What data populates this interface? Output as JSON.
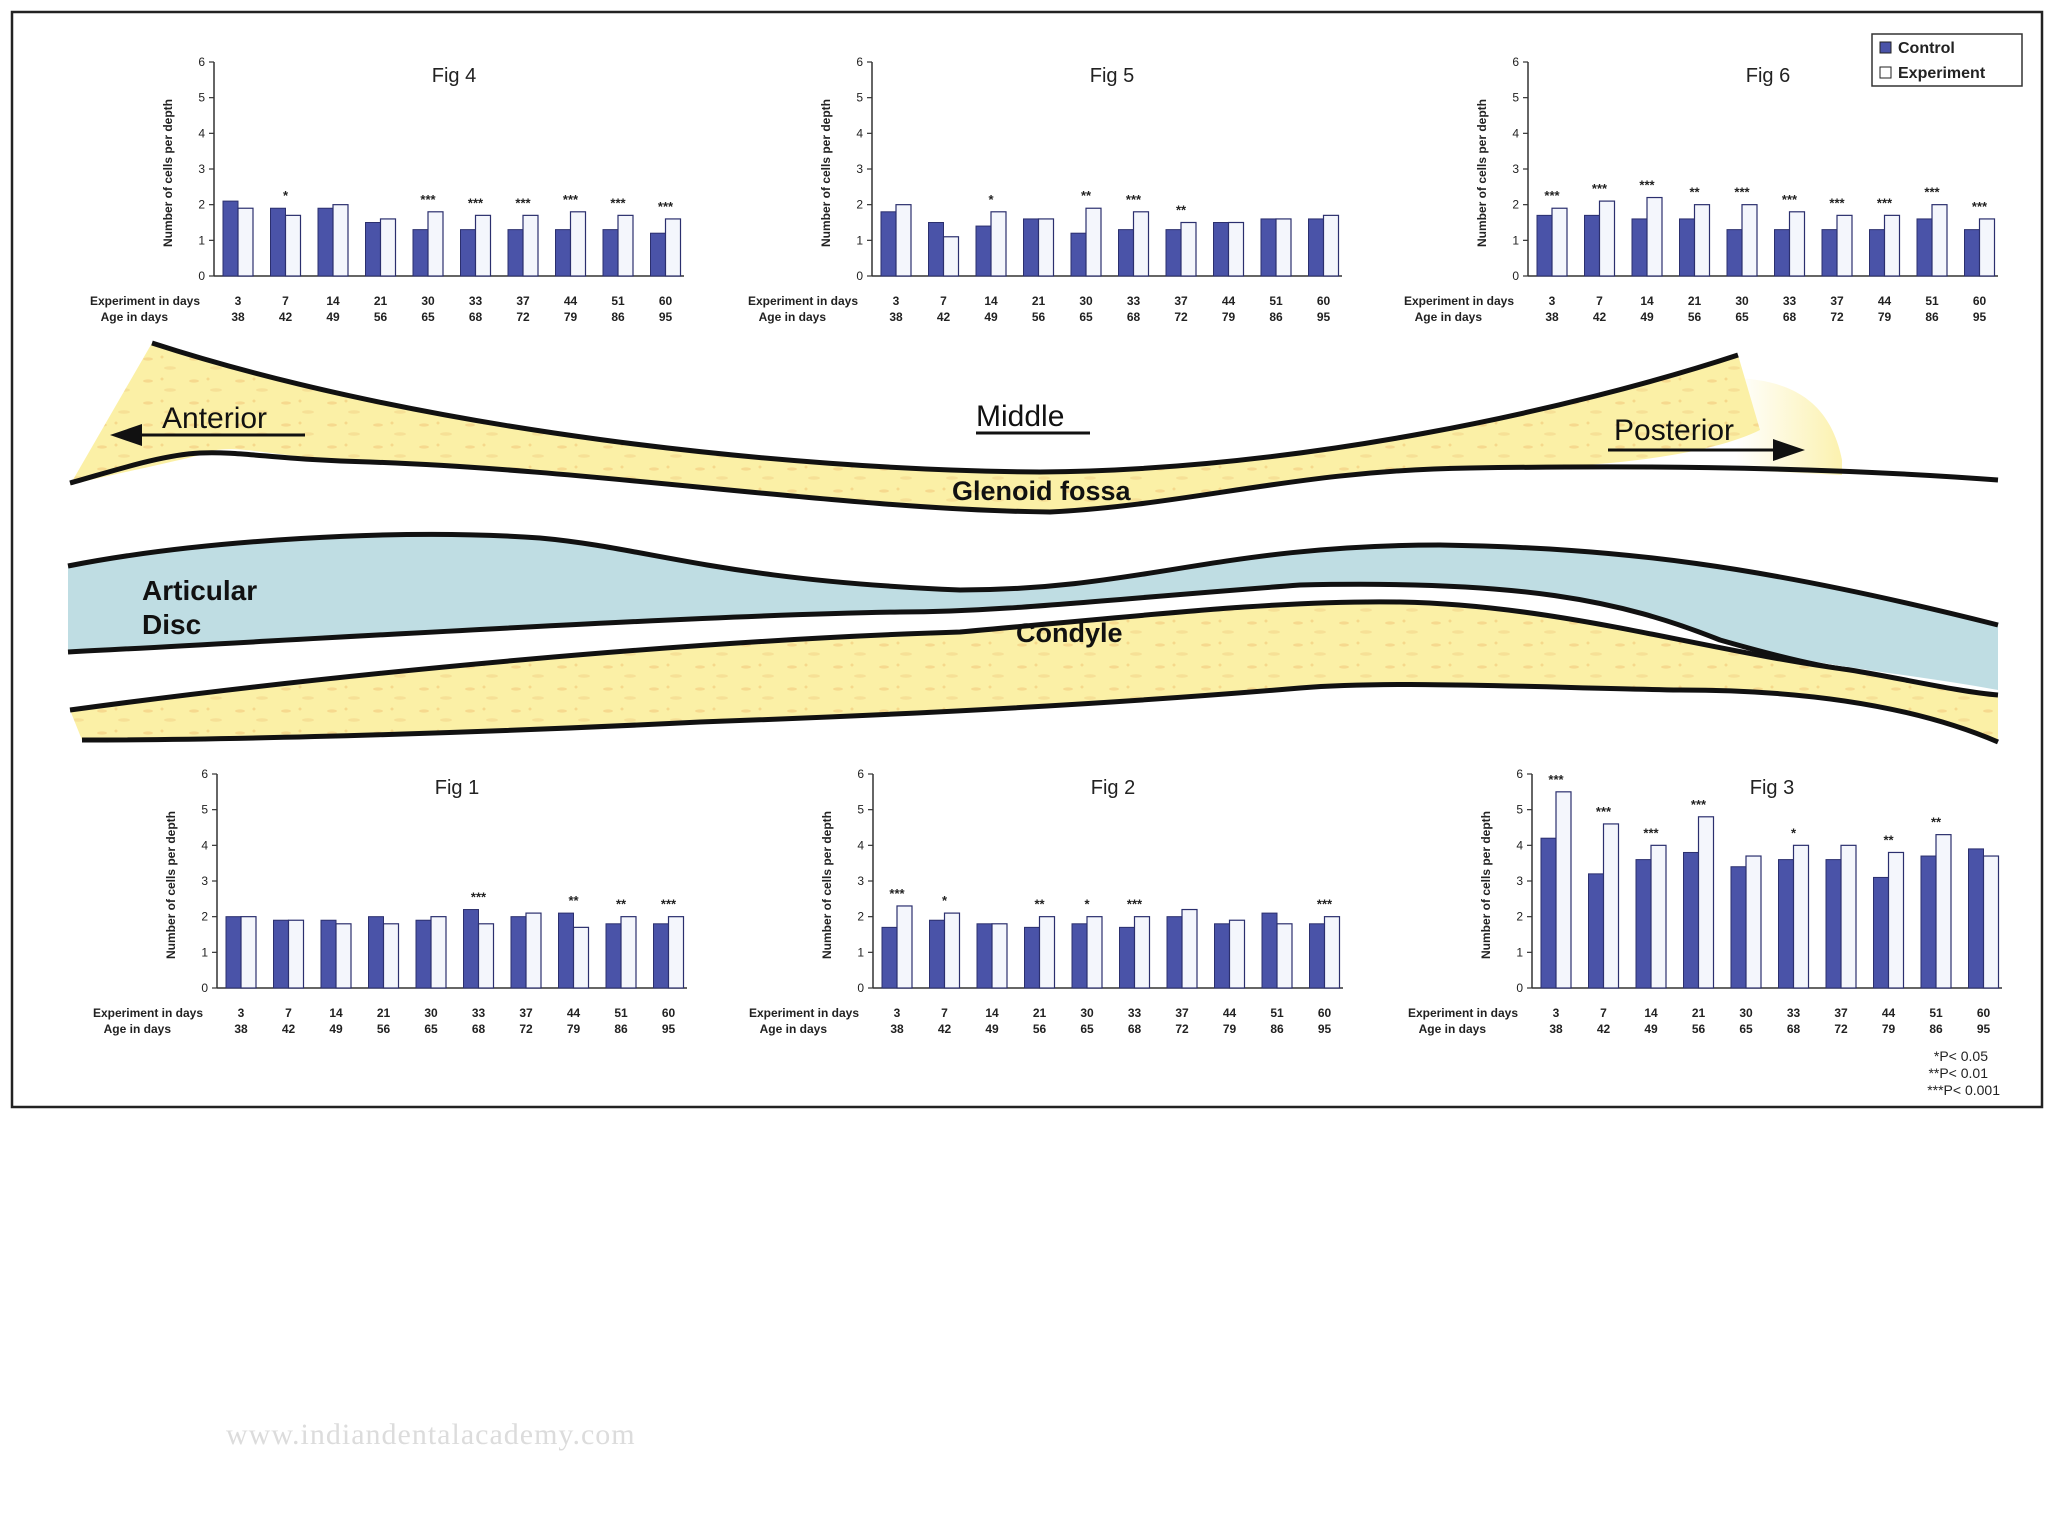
{
  "legend": {
    "control_label": "Control",
    "experiment_label": "Experiment",
    "control_color": "#4a53a8",
    "experiment_color": "#ffffff"
  },
  "significance_note": [
    "*P< 0.05",
    "**P< 0.01",
    "***P< 0.001"
  ],
  "watermark": "www.indiandentalacademy.com",
  "diagram_labels": {
    "anterior": "Anterior",
    "middle": "Middle",
    "posterior": "Posterior",
    "glenoid_fossa": "Glenoid fossa",
    "articular_disc_line1": "Articular",
    "articular_disc_line2": "Disc",
    "condyle": "Condyle"
  },
  "chart_data": [
    {
      "type": "bar",
      "title": "Fig 4",
      "ylabel": "Number of cells per depth",
      "ylim": [
        0,
        6
      ],
      "yticks": [
        0,
        1,
        2,
        3,
        4,
        5,
        6
      ],
      "row_labels": [
        "Experiment in days",
        "Age in days"
      ],
      "categories": [
        "3",
        "7",
        "14",
        "21",
        "30",
        "33",
        "37",
        "44",
        "51",
        "60"
      ],
      "age_days": [
        "38",
        "42",
        "49",
        "56",
        "65",
        "68",
        "72",
        "79",
        "86",
        "95"
      ],
      "series": [
        {
          "name": "Control",
          "values": [
            2.1,
            1.9,
            1.9,
            1.5,
            1.3,
            1.3,
            1.3,
            1.3,
            1.3,
            1.2
          ]
        },
        {
          "name": "Experiment",
          "values": [
            1.9,
            1.7,
            2.0,
            1.6,
            1.8,
            1.7,
            1.7,
            1.8,
            1.7,
            1.6
          ]
        }
      ],
      "significance": [
        "",
        "*",
        "",
        "",
        "***",
        "***",
        "***",
        "***",
        "***",
        "***"
      ]
    },
    {
      "type": "bar",
      "title": "Fig 5",
      "ylabel": "Number of cells per depth",
      "ylim": [
        0,
        6
      ],
      "yticks": [
        0,
        1,
        2,
        3,
        4,
        5,
        6
      ],
      "row_labels": [
        "Experiment in days",
        "Age in days"
      ],
      "categories": [
        "3",
        "7",
        "14",
        "21",
        "30",
        "33",
        "37",
        "44",
        "51",
        "60"
      ],
      "age_days": [
        "38",
        "42",
        "49",
        "56",
        "65",
        "68",
        "72",
        "79",
        "86",
        "95"
      ],
      "series": [
        {
          "name": "Control",
          "values": [
            1.8,
            1.5,
            1.4,
            1.6,
            1.2,
            1.3,
            1.3,
            1.5,
            1.6,
            1.6
          ]
        },
        {
          "name": "Experiment",
          "values": [
            2.0,
            1.1,
            1.8,
            1.6,
            1.9,
            1.8,
            1.5,
            1.5,
            1.6,
            1.7
          ]
        }
      ],
      "significance": [
        "",
        "",
        "*",
        "",
        "**",
        "***",
        "**",
        "",
        "",
        ""
      ]
    },
    {
      "type": "bar",
      "title": "Fig 6",
      "ylabel": "Number of cells per depth",
      "ylim": [
        0,
        6
      ],
      "yticks": [
        0,
        1,
        2,
        3,
        4,
        5,
        6
      ],
      "row_labels": [
        "Experiment in days",
        "Age in days"
      ],
      "categories": [
        "3",
        "7",
        "14",
        "21",
        "30",
        "33",
        "37",
        "44",
        "51",
        "60"
      ],
      "age_days": [
        "38",
        "42",
        "49",
        "56",
        "65",
        "68",
        "72",
        "79",
        "86",
        "95"
      ],
      "series": [
        {
          "name": "Control",
          "values": [
            1.7,
            1.7,
            1.6,
            1.6,
            1.3,
            1.3,
            1.3,
            1.3,
            1.6,
            1.3
          ]
        },
        {
          "name": "Experiment",
          "values": [
            1.9,
            2.1,
            2.2,
            2.0,
            2.0,
            1.8,
            1.7,
            1.7,
            2.0,
            1.6
          ]
        }
      ],
      "significance": [
        "***",
        "***",
        "***",
        "**",
        "***",
        "***",
        "***",
        "***",
        "***",
        "***"
      ],
      "legend": "top-right"
    },
    {
      "type": "bar",
      "title": "Fig 1",
      "ylabel": "Number of cells per depth",
      "ylim": [
        0,
        6
      ],
      "yticks": [
        0,
        1,
        2,
        3,
        4,
        5,
        6
      ],
      "row_labels": [
        "Experiment in days",
        "Age in days"
      ],
      "categories": [
        "3",
        "7",
        "14",
        "21",
        "30",
        "33",
        "37",
        "44",
        "51",
        "60"
      ],
      "age_days": [
        "38",
        "42",
        "49",
        "56",
        "65",
        "68",
        "72",
        "79",
        "86",
        "95"
      ],
      "series": [
        {
          "name": "Control",
          "values": [
            2.0,
            1.9,
            1.9,
            2.0,
            1.9,
            2.2,
            2.0,
            2.1,
            1.8,
            1.8
          ]
        },
        {
          "name": "Experiment",
          "values": [
            2.0,
            1.9,
            1.8,
            1.8,
            2.0,
            1.8,
            2.1,
            1.7,
            2.0,
            2.0
          ]
        }
      ],
      "significance": [
        "",
        "",
        "",
        "",
        "",
        "***",
        "",
        "**",
        "**",
        "***"
      ]
    },
    {
      "type": "bar",
      "title": "Fig 2",
      "ylabel": "Number of cells per depth",
      "ylim": [
        0,
        6
      ],
      "yticks": [
        0,
        1,
        2,
        3,
        4,
        5,
        6
      ],
      "row_labels": [
        "Experiment in days",
        "Age in days"
      ],
      "categories": [
        "3",
        "7",
        "14",
        "21",
        "30",
        "33",
        "37",
        "44",
        "51",
        "60"
      ],
      "age_days": [
        "38",
        "42",
        "49",
        "56",
        "65",
        "68",
        "72",
        "79",
        "86",
        "95"
      ],
      "series": [
        {
          "name": "Control",
          "values": [
            1.7,
            1.9,
            1.8,
            1.7,
            1.8,
            1.7,
            2.0,
            1.8,
            2.1,
            1.8
          ]
        },
        {
          "name": "Experiment",
          "values": [
            2.3,
            2.1,
            1.8,
            2.0,
            2.0,
            2.0,
            2.2,
            1.9,
            1.8,
            2.0
          ]
        }
      ],
      "significance": [
        "***",
        "*",
        "",
        "**",
        "*",
        "***",
        "",
        "",
        "",
        "***"
      ]
    },
    {
      "type": "bar",
      "title": "Fig 3",
      "ylabel": "Number of cells per depth",
      "ylim": [
        0,
        6
      ],
      "yticks": [
        0,
        1,
        2,
        3,
        4,
        5,
        6
      ],
      "row_labels": [
        "Experiment in days",
        "Age in days"
      ],
      "categories": [
        "3",
        "7",
        "14",
        "21",
        "30",
        "33",
        "37",
        "44",
        "51",
        "60"
      ],
      "age_days": [
        "38",
        "42",
        "49",
        "56",
        "65",
        "68",
        "72",
        "79",
        "86",
        "95"
      ],
      "series": [
        {
          "name": "Control",
          "values": [
            4.2,
            3.2,
            3.6,
            3.8,
            3.4,
            3.6,
            3.6,
            3.1,
            3.7,
            3.9
          ]
        },
        {
          "name": "Experiment",
          "values": [
            5.5,
            4.6,
            4.0,
            4.8,
            3.7,
            4.0,
            4.0,
            3.8,
            4.3,
            3.7
          ]
        }
      ],
      "significance": [
        "***",
        "***",
        "***",
        "***",
        "",
        "*",
        "",
        "**",
        "**",
        ""
      ]
    }
  ]
}
